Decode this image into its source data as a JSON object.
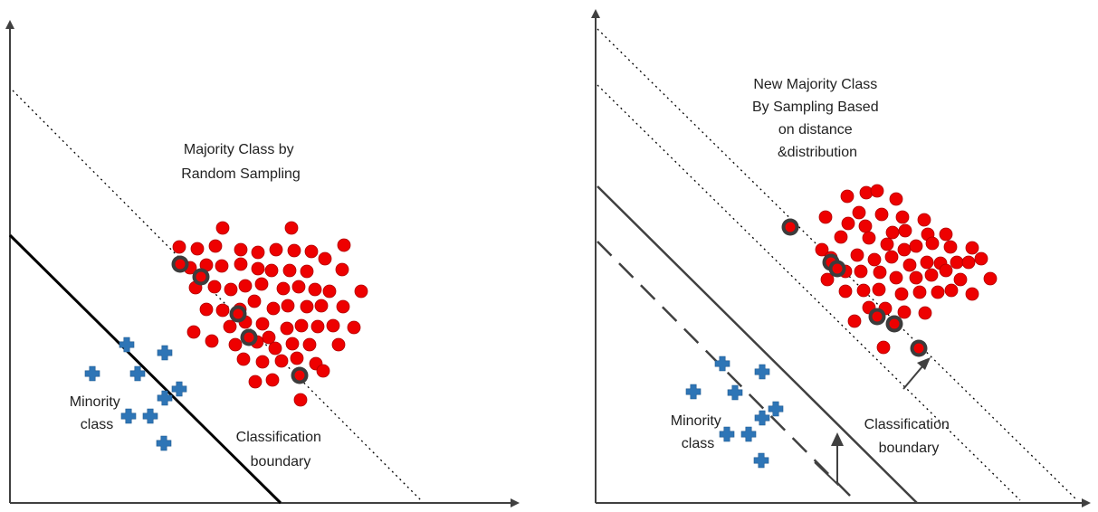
{
  "colors": {
    "majority": "#ee0000",
    "majority_stroke": "#b00000",
    "selected": "#3c3c3c",
    "minority": "#2e75b6",
    "axis": "#404040",
    "boundary": "#000000",
    "arrow": "#404040"
  },
  "panels": [
    {
      "id": "random-sampling",
      "majority_label": [
        "Majority Class by",
        "Random Sampling"
      ],
      "minority_label": [
        "Minority",
        "class"
      ],
      "boundary_label": [
        "Classification",
        "boundary"
      ]
    },
    {
      "id": "distance-distribution-sampling",
      "majority_label": [
        "New Majority Class",
        "By Sampling Based",
        "on distance",
        "&distribution"
      ],
      "minority_label": [
        "Minority",
        "class"
      ],
      "boundary_label": [
        "Classification",
        "boundary"
      ]
    }
  ],
  "icons": {
    "minority_marker": "plus-icon",
    "majority_marker": "circle-icon",
    "shift_marker": "arrow-icon"
  }
}
